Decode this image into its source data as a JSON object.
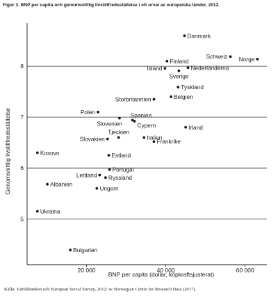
{
  "figure": {
    "title": "Figur 3. BNP per capita och genomsnittlig livstillfredsställelse i ett urval av europeiska länder, 2012.",
    "source": "Källa: Världsbanken och European Social Survey, 2012; se Norwegian Centre for Research Data (2017)."
  },
  "chart_data": {
    "type": "scatter",
    "title": "Figur 3. BNP per capita och genomsnittlig livstillfredsställelse i ett urval av europeiska länder, 2012.",
    "xlabel": "BNP per capita (dollar, köpkraftsjusterat)",
    "ylabel": "Genomsnittlig livstillfredsställelse",
    "xlim": [
      5000,
      65500
    ],
    "ylim": [
      4.1,
      8.85
    ],
    "xticks": [
      20000,
      40000,
      60000
    ],
    "xtick_labels": [
      "20 000",
      "40 000",
      "60 000"
    ],
    "yticks": [
      5,
      6,
      7,
      8
    ],
    "ytick_labels": [
      "5",
      "6",
      "7",
      "8"
    ],
    "grid": "horizontal",
    "legend": "none",
    "marker_color": "#1a1a1a",
    "points": [
      {
        "label": "Danmark",
        "x": 44700,
        "y": 8.6,
        "label_pos": "right"
      },
      {
        "label": "Finland",
        "x": 40300,
        "y": 8.1,
        "label_pos": "right"
      },
      {
        "label": "Schweiz",
        "x": 56300,
        "y": 8.19,
        "label_pos": "left"
      },
      {
        "label": "Norge",
        "x": 63100,
        "y": 8.14,
        "label_pos": "left"
      },
      {
        "label": "Island",
        "x": 39800,
        "y": 7.96,
        "label_pos": "left"
      },
      {
        "label": "Nederländerna",
        "x": 45600,
        "y": 7.97,
        "label_pos": "right"
      },
      {
        "label": "Sverige",
        "x": 43300,
        "y": 7.91,
        "label_pos": "below"
      },
      {
        "label": "Tyskland",
        "x": 43100,
        "y": 7.59,
        "label_pos": "right"
      },
      {
        "label": "Belgien",
        "x": 41300,
        "y": 7.4,
        "label_pos": "right"
      },
      {
        "label": "Storbritannien",
        "x": 37000,
        "y": 7.35,
        "label_pos": "left"
      },
      {
        "label": "Polen",
        "x": 22900,
        "y": 7.1,
        "label_pos": "left"
      },
      {
        "label": "Spanien",
        "x": 31600,
        "y": 6.94,
        "label_pos": "above-right"
      },
      {
        "label": "Slovenien",
        "x": 28300,
        "y": 6.98,
        "label_pos": "below-left"
      },
      {
        "label": "Cypern",
        "x": 32100,
        "y": 6.92,
        "label_pos": "below-right"
      },
      {
        "label": "Irland",
        "x": 45000,
        "y": 6.8,
        "label_pos": "right"
      },
      {
        "label": "Tjeckien",
        "x": 28100,
        "y": 6.6,
        "label_pos": "above"
      },
      {
        "label": "Italien",
        "x": 34500,
        "y": 6.6,
        "label_pos": "right"
      },
      {
        "label": "Slovakien",
        "x": 25300,
        "y": 6.57,
        "label_pos": "left"
      },
      {
        "label": "Frankrike",
        "x": 37000,
        "y": 6.52,
        "label_pos": "right"
      },
      {
        "label": "Kosovo",
        "x": 7600,
        "y": 6.3,
        "label_pos": "right"
      },
      {
        "label": "Estland",
        "x": 25600,
        "y": 6.25,
        "label_pos": "right"
      },
      {
        "label": "Portugal",
        "x": 25800,
        "y": 5.97,
        "label_pos": "right"
      },
      {
        "label": "Lettland",
        "x": 23300,
        "y": 5.86,
        "label_pos": "left"
      },
      {
        "label": "Ryssland",
        "x": 24800,
        "y": 5.81,
        "label_pos": "right"
      },
      {
        "label": "Albanien",
        "x": 10100,
        "y": 5.68,
        "label_pos": "right"
      },
      {
        "label": "Ungern",
        "x": 22600,
        "y": 5.6,
        "label_pos": "right"
      },
      {
        "label": "Ukraina",
        "x": 7600,
        "y": 5.15,
        "label_pos": "right"
      },
      {
        "label": "Bulgarien",
        "x": 15900,
        "y": 4.39,
        "label_pos": "right"
      }
    ]
  }
}
